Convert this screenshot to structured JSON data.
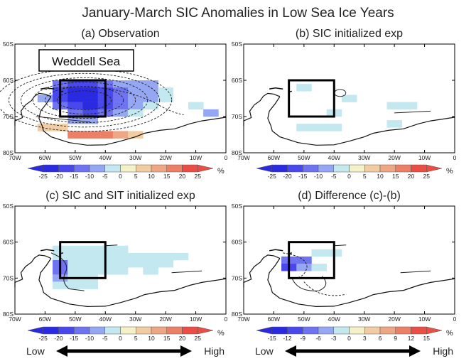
{
  "figure": {
    "title": "January-March SIC Anomalies in Low Sea Ice Years",
    "low_label": "Low",
    "high_label": "High",
    "region_label": "Weddell Sea"
  },
  "chart_data": [
    {
      "type": "heatmap",
      "id": "a",
      "title": "(a) Observation",
      "xlim": [
        -70,
        0
      ],
      "ylim": [
        -80,
        -50
      ],
      "xticks": [
        "70W",
        "60W",
        "50W",
        "40W",
        "30W",
        "20W",
        "10W",
        "0"
      ],
      "yticks": [
        "50S",
        "60S",
        "70S",
        "80S"
      ],
      "box": {
        "lon": [
          -55,
          -40
        ],
        "lat": [
          -70,
          -60
        ]
      },
      "colorbar": {
        "ticks": [
          "-25",
          "-20",
          "-15",
          "-10",
          "-5",
          "0",
          "5",
          "10",
          "15",
          "20",
          "25"
        ],
        "unit": "%"
      },
      "cells": [
        {
          "lon": -55,
          "lat": -61,
          "v": -15
        },
        {
          "lon": -50,
          "lat": -61,
          "v": -20
        },
        {
          "lon": -45,
          "lat": -61,
          "v": -20
        },
        {
          "lon": -40,
          "lat": -61,
          "v": -15
        },
        {
          "lon": -35,
          "lat": -61,
          "v": -10
        },
        {
          "lon": -30,
          "lat": -61,
          "v": -10
        },
        {
          "lon": -25,
          "lat": -61,
          "v": -10
        },
        {
          "lon": -55,
          "lat": -63,
          "v": -20
        },
        {
          "lon": -50,
          "lat": -63,
          "v": -25
        },
        {
          "lon": -45,
          "lat": -63,
          "v": -25
        },
        {
          "lon": -40,
          "lat": -63,
          "v": -20
        },
        {
          "lon": -35,
          "lat": -63,
          "v": -15
        },
        {
          "lon": -30,
          "lat": -63,
          "v": -10
        },
        {
          "lon": -25,
          "lat": -63,
          "v": -10
        },
        {
          "lon": -20,
          "lat": -63,
          "v": -5
        },
        {
          "lon": -60,
          "lat": -65,
          "v": -10
        },
        {
          "lon": -55,
          "lat": -65,
          "v": -20
        },
        {
          "lon": -50,
          "lat": -65,
          "v": -25
        },
        {
          "lon": -45,
          "lat": -65,
          "v": -25
        },
        {
          "lon": -40,
          "lat": -65,
          "v": -20
        },
        {
          "lon": -35,
          "lat": -65,
          "v": -15
        },
        {
          "lon": -30,
          "lat": -65,
          "v": -10
        },
        {
          "lon": -25,
          "lat": -65,
          "v": -10
        },
        {
          "lon": -20,
          "lat": -65,
          "v": -5
        },
        {
          "lon": -55,
          "lat": -67,
          "v": -15
        },
        {
          "lon": -50,
          "lat": -67,
          "v": -20
        },
        {
          "lon": -45,
          "lat": -67,
          "v": -25
        },
        {
          "lon": -40,
          "lat": -67,
          "v": -20
        },
        {
          "lon": -35,
          "lat": -67,
          "v": -15
        },
        {
          "lon": -30,
          "lat": -67,
          "v": -10
        },
        {
          "lon": -25,
          "lat": -67,
          "v": -5
        },
        {
          "lon": -10,
          "lat": -67,
          "v": -5
        },
        {
          "lon": -50,
          "lat": -69,
          "v": -15
        },
        {
          "lon": -45,
          "lat": -69,
          "v": -20
        },
        {
          "lon": -40,
          "lat": -69,
          "v": -15
        },
        {
          "lon": -35,
          "lat": -69,
          "v": -10
        },
        {
          "lon": -30,
          "lat": -69,
          "v": -5
        },
        {
          "lon": -5,
          "lat": -69,
          "v": -10
        },
        {
          "lon": -50,
          "lat": -71,
          "v": -10
        },
        {
          "lon": -45,
          "lat": -71,
          "v": -10
        },
        {
          "lon": -60,
          "lat": -73,
          "v": 5
        },
        {
          "lon": -55,
          "lat": -73,
          "v": 5
        },
        {
          "lon": -50,
          "lat": -75,
          "v": 15
        },
        {
          "lon": -45,
          "lat": -75,
          "v": 15
        },
        {
          "lon": -40,
          "lat": -75,
          "v": 15
        },
        {
          "lon": -35,
          "lat": -75,
          "v": 10
        },
        {
          "lon": -30,
          "lat": -75,
          "v": 5
        }
      ]
    },
    {
      "type": "heatmap",
      "id": "b",
      "title": "(b) SIC initialized exp",
      "xlim": [
        -70,
        0
      ],
      "ylim": [
        -80,
        -50
      ],
      "xticks": [
        "70W",
        "60W",
        "50W",
        "40W",
        "30W",
        "20W",
        "10W",
        "0"
      ],
      "yticks": [
        "50S",
        "60S",
        "70S",
        "80S"
      ],
      "box": {
        "lon": [
          -55,
          -40
        ],
        "lat": [
          -70,
          -60
        ]
      },
      "colorbar": {
        "ticks": [
          "-25",
          "-20",
          "-15",
          "-10",
          "-5",
          "0",
          "5",
          "10",
          "15",
          "20",
          "25"
        ],
        "unit": "%"
      },
      "cells": [
        {
          "lon": -50,
          "lat": -62,
          "v": -5
        },
        {
          "lon": -35,
          "lat": -65,
          "v": -5
        },
        {
          "lon": -40,
          "lat": -69,
          "v": -5
        },
        {
          "lon": -15,
          "lat": -67,
          "v": -5
        },
        {
          "lon": -20,
          "lat": -67,
          "v": -5
        },
        {
          "lon": -50,
          "lat": -73,
          "v": -5
        },
        {
          "lon": -45,
          "lat": -73,
          "v": -5
        },
        {
          "lon": -40,
          "lat": -73,
          "v": -5
        },
        {
          "lon": -20,
          "lat": -72,
          "v": -5
        }
      ]
    },
    {
      "type": "heatmap",
      "id": "c",
      "title": "(c) SIC and SIT initialized exp",
      "xlim": [
        -70,
        0
      ],
      "ylim": [
        -80,
        -50
      ],
      "xticks": [
        "70W",
        "60W",
        "50W",
        "40W",
        "30W",
        "20W",
        "10W",
        "0"
      ],
      "yticks": [
        "50S",
        "60S",
        "70S",
        "80S"
      ],
      "box": {
        "lon": [
          -55,
          -40
        ],
        "lat": [
          -70,
          -60
        ]
      },
      "colorbar": {
        "ticks": [
          "-25",
          "-20",
          "-15",
          "-10",
          "-5",
          "0",
          "5",
          "10",
          "15",
          "20",
          "25"
        ],
        "unit": "%"
      },
      "cells": [
        {
          "lon": -55,
          "lat": -62,
          "v": -5
        },
        {
          "lon": -50,
          "lat": -62,
          "v": -5
        },
        {
          "lon": -45,
          "lat": -62,
          "v": -5
        },
        {
          "lon": -40,
          "lat": -62,
          "v": -5
        },
        {
          "lon": -35,
          "lat": -62,
          "v": -5
        },
        {
          "lon": -55,
          "lat": -64,
          "v": -5
        },
        {
          "lon": -50,
          "lat": -64,
          "v": -5
        },
        {
          "lon": -45,
          "lat": -64,
          "v": -5
        },
        {
          "lon": -40,
          "lat": -64,
          "v": -5
        },
        {
          "lon": -35,
          "lat": -64,
          "v": -5
        },
        {
          "lon": -30,
          "lat": -64,
          "v": -5
        },
        {
          "lon": -25,
          "lat": -64,
          "v": -5
        },
        {
          "lon": -20,
          "lat": -64,
          "v": -5
        },
        {
          "lon": -15,
          "lat": -64,
          "v": -5
        },
        {
          "lon": -55,
          "lat": -66,
          "v": -15
        },
        {
          "lon": -50,
          "lat": -66,
          "v": -5
        },
        {
          "lon": -45,
          "lat": -66,
          "v": -5
        },
        {
          "lon": -40,
          "lat": -66,
          "v": -5
        },
        {
          "lon": -35,
          "lat": -66,
          "v": -5
        },
        {
          "lon": -30,
          "lat": -66,
          "v": -5
        },
        {
          "lon": -25,
          "lat": -66,
          "v": -5
        },
        {
          "lon": -20,
          "lat": -66,
          "v": -5
        },
        {
          "lon": -55,
          "lat": -68,
          "v": -15
        },
        {
          "lon": -50,
          "lat": -68,
          "v": -5
        },
        {
          "lon": -45,
          "lat": -68,
          "v": -5
        },
        {
          "lon": -40,
          "lat": -68,
          "v": -5
        },
        {
          "lon": -35,
          "lat": -68,
          "v": -5
        },
        {
          "lon": -25,
          "lat": -68,
          "v": -5
        },
        {
          "lon": -55,
          "lat": -70,
          "v": -10
        },
        {
          "lon": -50,
          "lat": -70,
          "v": -5
        },
        {
          "lon": -45,
          "lat": -70,
          "v": -5
        },
        {
          "lon": -55,
          "lat": -72,
          "v": -5
        },
        {
          "lon": -50,
          "lat": -72,
          "v": -5
        },
        {
          "lon": -45,
          "lat": -72,
          "v": -5
        }
      ]
    },
    {
      "type": "heatmap",
      "id": "d",
      "title": "(d) Difference (c)-(b)",
      "xlim": [
        -70,
        0
      ],
      "ylim": [
        -80,
        -50
      ],
      "xticks": [
        "70W",
        "60W",
        "50W",
        "40W",
        "30W",
        "20W",
        "10W",
        "0"
      ],
      "yticks": [
        "50S",
        "60S",
        "70S",
        "80S"
      ],
      "box": {
        "lon": [
          -55,
          -40
        ],
        "lat": [
          -70,
          -60
        ]
      },
      "colorbar": {
        "ticks": [
          "-15",
          "-12",
          "-9",
          "-6",
          "-3",
          "0",
          "3",
          "6",
          "9",
          "12",
          "15"
        ],
        "unit": "%"
      },
      "cells": [
        {
          "lon": -55,
          "lat": -65,
          "v": -9
        },
        {
          "lon": -50,
          "lat": -65,
          "v": -9
        },
        {
          "lon": -55,
          "lat": -67,
          "v": -12
        },
        {
          "lon": -50,
          "lat": -67,
          "v": -6
        },
        {
          "lon": -45,
          "lat": -63,
          "v": -3
        },
        {
          "lon": -40,
          "lat": -63,
          "v": -3
        },
        {
          "lon": -45,
          "lat": -67,
          "v": -3
        }
      ]
    }
  ]
}
